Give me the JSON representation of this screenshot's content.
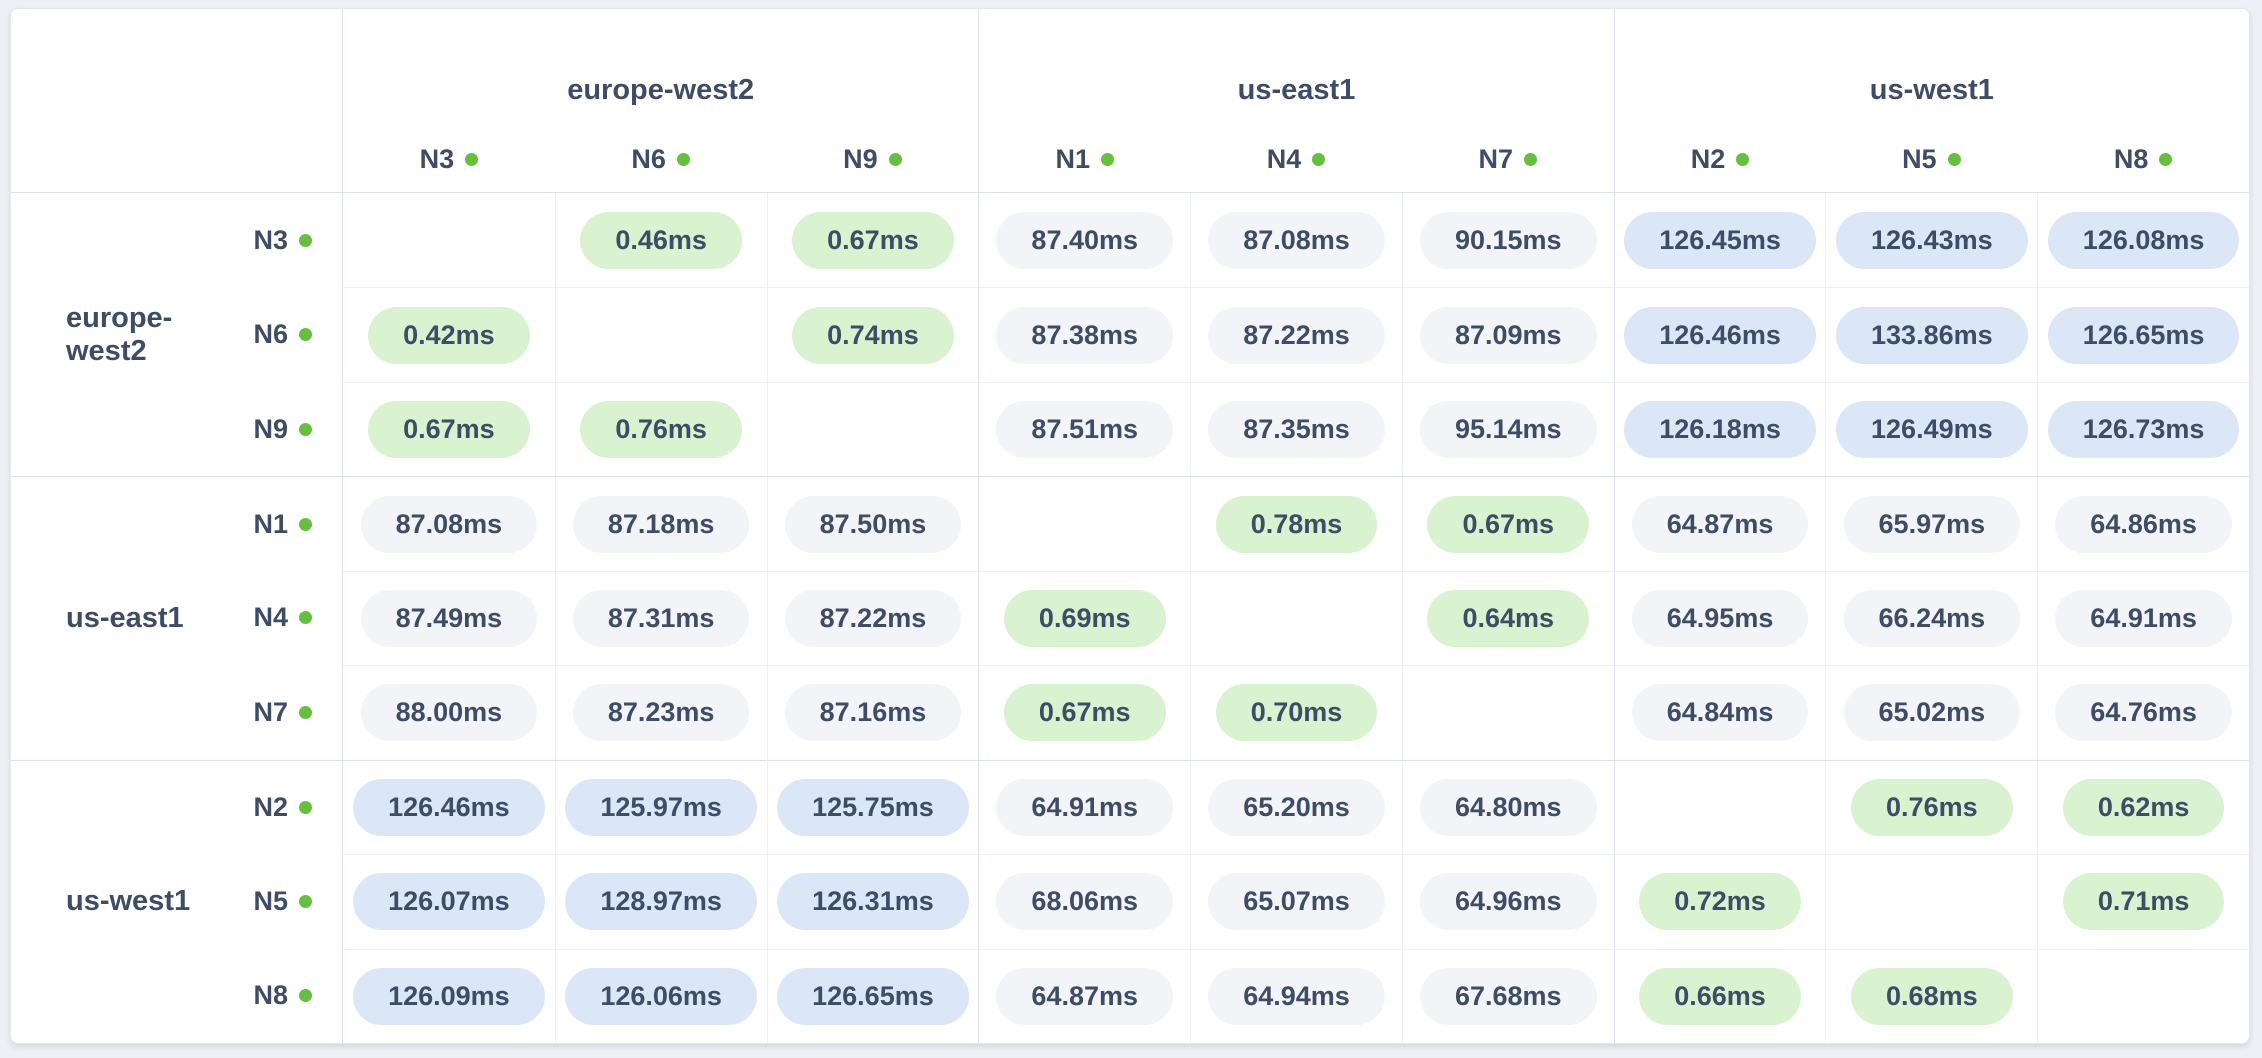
{
  "style": {
    "page_bg": "#eef0f5",
    "card_bg": "#ffffff",
    "text": "#3e4c66",
    "border_strong": "#dde1e9",
    "border_light": "#edf0f4",
    "local_bg": "#d9f2cf",
    "mid_bg": "#f2f4f8",
    "high_bg": "#dbe7f6",
    "dot": "#66bf3f"
  },
  "chart_data": {
    "type": "heatmap",
    "description": "Round-trip network latency matrix between nodes, grouped by region",
    "unit": "ms",
    "value_format": "two decimals with ms suffix",
    "column_groups": [
      {
        "label": "europe-west2",
        "nodes": [
          "N3",
          "N6",
          "N9"
        ]
      },
      {
        "label": "us-east1",
        "nodes": [
          "N1",
          "N4",
          "N7"
        ]
      },
      {
        "label": "us-west1",
        "nodes": [
          "N2",
          "N5",
          "N8"
        ]
      }
    ],
    "row_groups": [
      {
        "label": "europe-west2",
        "nodes": [
          "N3",
          "N6",
          "N9"
        ]
      },
      {
        "label": "us-east1",
        "nodes": [
          "N1",
          "N4",
          "N7"
        ]
      },
      {
        "label": "us-west1",
        "nodes": [
          "N2",
          "N5",
          "N8"
        ]
      }
    ],
    "columns": [
      "N3",
      "N6",
      "N9",
      "N1",
      "N4",
      "N7",
      "N2",
      "N5",
      "N8"
    ],
    "rows": [
      "N3",
      "N6",
      "N9",
      "N1",
      "N4",
      "N7",
      "N2",
      "N5",
      "N8"
    ],
    "values": [
      [
        null,
        0.46,
        0.67,
        87.4,
        87.08,
        90.15,
        126.45,
        126.43,
        126.08
      ],
      [
        0.42,
        null,
        0.74,
        87.38,
        87.22,
        87.09,
        126.46,
        133.86,
        126.65
      ],
      [
        0.67,
        0.76,
        null,
        87.51,
        87.35,
        95.14,
        126.18,
        126.49,
        126.73
      ],
      [
        87.08,
        87.18,
        87.5,
        null,
        0.78,
        0.67,
        64.87,
        65.97,
        64.86
      ],
      [
        87.49,
        87.31,
        87.22,
        0.69,
        null,
        0.64,
        64.95,
        66.24,
        64.91
      ],
      [
        88.0,
        87.23,
        87.16,
        0.67,
        0.7,
        null,
        64.84,
        65.02,
        64.76
      ],
      [
        126.46,
        125.97,
        125.75,
        64.91,
        65.2,
        64.8,
        null,
        0.76,
        0.62
      ],
      [
        126.07,
        128.97,
        126.31,
        68.06,
        65.07,
        64.96,
        0.72,
        null,
        0.71
      ],
      [
        126.09,
        126.06,
        126.65,
        64.87,
        64.94,
        67.68,
        0.66,
        0.68,
        null
      ]
    ],
    "color_tiers": {
      "local_max": 1,
      "high_min": 100,
      "local_color": "#d9f2cf",
      "mid_color": "#f2f4f8",
      "high_color": "#dbe7f6"
    },
    "legend_position": "none",
    "grid": true,
    "diagonal": "empty"
  }
}
